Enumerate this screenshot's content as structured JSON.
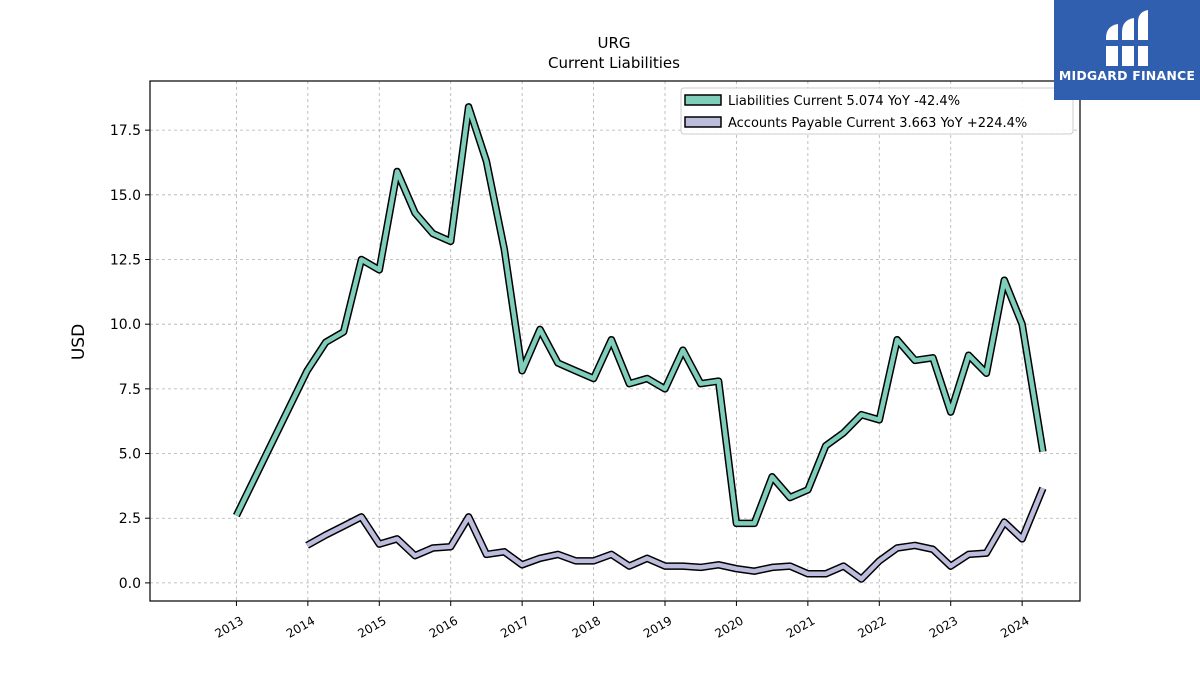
{
  "chart_data": {
    "type": "line",
    "title": "URG",
    "subtitle": "Current  Liabilities",
    "ylabel": "USD",
    "xlabel": "",
    "ylim": [
      -0.7,
      19.4
    ],
    "xlim": [
      2011.79,
      2024.81
    ],
    "yticks": [
      0.0,
      2.5,
      5.0,
      7.5,
      10.0,
      12.5,
      15.0,
      17.5
    ],
    "ytick_labels": [
      "0.0",
      "2.5",
      "5.0",
      "7.5",
      "10.0",
      "12.5",
      "15.0",
      "17.5"
    ],
    "xticks": [
      2013,
      2014,
      2015,
      2016,
      2017,
      2018,
      2019,
      2020,
      2021,
      2022,
      2023,
      2024
    ],
    "xtick_labels": [
      "2013",
      "2014",
      "2015",
      "2016",
      "2017",
      "2018",
      "2019",
      "2020",
      "2021",
      "2022",
      "2023",
      "2024"
    ],
    "grid": true,
    "legend_position": "top-right",
    "series": [
      {
        "name": "Liabilities Current  5.074 YoY -42.4%",
        "color": "#7fcdbb",
        "points": [
          [
            2013.0,
            2.6
          ],
          [
            2013.99,
            8.2
          ],
          [
            2014.25,
            9.3
          ],
          [
            2014.5,
            9.7
          ],
          [
            2014.75,
            12.5
          ],
          [
            2015.0,
            12.1
          ],
          [
            2015.25,
            15.9
          ],
          [
            2015.5,
            14.3
          ],
          [
            2015.75,
            13.5
          ],
          [
            2016.0,
            13.2
          ],
          [
            2016.25,
            18.4
          ],
          [
            2016.5,
            16.3
          ],
          [
            2016.75,
            12.9
          ],
          [
            2017.0,
            8.2
          ],
          [
            2017.25,
            9.8
          ],
          [
            2017.5,
            8.5
          ],
          [
            2017.75,
            8.2
          ],
          [
            2018.0,
            7.9
          ],
          [
            2018.25,
            9.4
          ],
          [
            2018.5,
            7.7
          ],
          [
            2018.75,
            7.9
          ],
          [
            2019.0,
            7.5
          ],
          [
            2019.25,
            9.0
          ],
          [
            2019.5,
            7.7
          ],
          [
            2019.75,
            7.8
          ],
          [
            2020.0,
            2.3
          ],
          [
            2020.25,
            2.3
          ],
          [
            2020.5,
            4.1
          ],
          [
            2020.75,
            3.3
          ],
          [
            2021.0,
            3.6
          ],
          [
            2021.25,
            5.3
          ],
          [
            2021.5,
            5.8
          ],
          [
            2021.75,
            6.5
          ],
          [
            2022.0,
            6.3
          ],
          [
            2022.25,
            9.4
          ],
          [
            2022.5,
            8.6
          ],
          [
            2022.75,
            8.7
          ],
          [
            2023.0,
            6.6
          ],
          [
            2023.25,
            8.8
          ],
          [
            2023.5,
            8.1
          ],
          [
            2023.75,
            11.7
          ],
          [
            2024.0,
            10.0
          ],
          [
            2024.29,
            5.07
          ]
        ]
      },
      {
        "name": "Accounts Payable Current  3.663 YoY +224.4%",
        "color": "#bcbddc",
        "points": [
          [
            2013.99,
            1.45
          ],
          [
            2014.25,
            1.85
          ],
          [
            2014.5,
            2.2
          ],
          [
            2014.75,
            2.55
          ],
          [
            2015.0,
            1.5
          ],
          [
            2015.25,
            1.7
          ],
          [
            2015.5,
            1.05
          ],
          [
            2015.75,
            1.35
          ],
          [
            2016.0,
            1.4
          ],
          [
            2016.25,
            2.55
          ],
          [
            2016.5,
            1.1
          ],
          [
            2016.75,
            1.2
          ],
          [
            2017.0,
            0.7
          ],
          [
            2017.25,
            0.95
          ],
          [
            2017.5,
            1.1
          ],
          [
            2017.75,
            0.85
          ],
          [
            2018.0,
            0.85
          ],
          [
            2018.25,
            1.1
          ],
          [
            2018.5,
            0.65
          ],
          [
            2018.75,
            0.95
          ],
          [
            2019.0,
            0.65
          ],
          [
            2019.25,
            0.65
          ],
          [
            2019.5,
            0.6
          ],
          [
            2019.75,
            0.7
          ],
          [
            2020.0,
            0.55
          ],
          [
            2020.25,
            0.45
          ],
          [
            2020.5,
            0.6
          ],
          [
            2020.75,
            0.65
          ],
          [
            2021.0,
            0.35
          ],
          [
            2021.25,
            0.35
          ],
          [
            2021.5,
            0.65
          ],
          [
            2021.75,
            0.15
          ],
          [
            2022.0,
            0.85
          ],
          [
            2022.25,
            1.35
          ],
          [
            2022.5,
            1.45
          ],
          [
            2022.75,
            1.3
          ],
          [
            2023.0,
            0.65
          ],
          [
            2023.25,
            1.1
          ],
          [
            2023.5,
            1.15
          ],
          [
            2023.75,
            2.35
          ],
          [
            2024.0,
            1.7
          ],
          [
            2024.29,
            3.66
          ]
        ]
      }
    ]
  },
  "logo": {
    "text": "MIDGARD FINANCE",
    "background": "#2f5fae",
    "icon": "midgard-logo-mark"
  }
}
